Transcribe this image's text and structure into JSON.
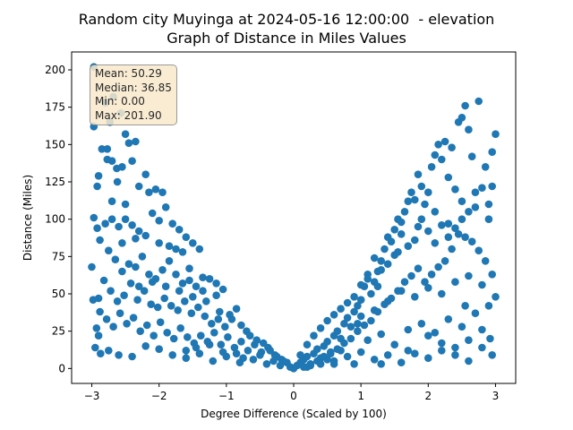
{
  "title_line1": "Random city Muyinga at 2024-05-16 12:00:00  - elevation",
  "title_line2": "Graph of Distance in Miles Values",
  "stats": {
    "mean": "Mean: 50.29",
    "median": "Median: 36.85",
    "min": "Min: 0.00",
    "max": "Max: 201.90"
  },
  "chart_data": {
    "type": "scatter",
    "xlabel": "Degree Difference (Scaled by 100)",
    "ylabel": "Distance (Miles)",
    "xlim": [
      -3.3,
      3.3
    ],
    "ylim": [
      -10,
      212
    ],
    "xticks": [
      -3,
      -2,
      -1,
      0,
      1,
      2,
      3
    ],
    "yticks": [
      0,
      25,
      50,
      75,
      100,
      125,
      150,
      175,
      200
    ],
    "color": "#1f77b4",
    "grid": false,
    "points": [
      [
        -2.97,
        202
      ],
      [
        -2.97,
        162
      ],
      [
        -2.8,
        178
      ],
      [
        -2.73,
        165
      ],
      [
        -2.68,
        182
      ],
      [
        -2.57,
        171
      ],
      [
        -2.85,
        147
      ],
      [
        -2.77,
        147
      ],
      [
        -2.77,
        140
      ],
      [
        -2.7,
        139
      ],
      [
        -2.63,
        134
      ],
      [
        -2.5,
        157
      ],
      [
        -2.45,
        151
      ],
      [
        -2.4,
        139
      ],
      [
        -2.35,
        152
      ],
      [
        -2.9,
        129
      ],
      [
        -2.92,
        122
      ],
      [
        -2.62,
        125
      ],
      [
        -2.55,
        135
      ],
      [
        -2.3,
        122
      ],
      [
        -2.2,
        130
      ],
      [
        -2.15,
        118
      ],
      [
        -2.05,
        120
      ],
      [
        -1.95,
        118
      ],
      [
        -1.9,
        108
      ],
      [
        -2.97,
        101
      ],
      [
        -2.92,
        94
      ],
      [
        -2.8,
        97
      ],
      [
        -2.7,
        100
      ],
      [
        -2.6,
        95
      ],
      [
        -2.5,
        100
      ],
      [
        -2.4,
        96
      ],
      [
        -2.3,
        92
      ],
      [
        -2.2,
        89
      ],
      [
        -2.1,
        104
      ],
      [
        -2.0,
        99
      ],
      [
        -1.8,
        97
      ],
      [
        -1.7,
        93
      ],
      [
        -1.6,
        88
      ],
      [
        -1.5,
        84
      ],
      [
        -1.4,
        80
      ],
      [
        -2.88,
        86
      ],
      [
        -2.75,
        79
      ],
      [
        -2.65,
        73
      ],
      [
        -2.55,
        65
      ],
      [
        -2.45,
        70
      ],
      [
        -2.35,
        68
      ],
      [
        -2.25,
        75
      ],
      [
        -2.15,
        63
      ],
      [
        -2.05,
        60
      ],
      [
        -1.95,
        66
      ],
      [
        -1.85,
        72
      ],
      [
        -1.75,
        63
      ],
      [
        -1.65,
        57
      ],
      [
        -1.55,
        59
      ],
      [
        -1.45,
        55
      ],
      [
        -1.35,
        52
      ],
      [
        -1.25,
        60
      ],
      [
        -1.15,
        57
      ],
      [
        -1.05,
        53
      ],
      [
        -3.0,
        68
      ],
      [
        -2.9,
        47
      ],
      [
        -2.82,
        59
      ],
      [
        -2.72,
        52
      ],
      [
        -2.62,
        45
      ],
      [
        -2.52,
        49
      ],
      [
        -2.42,
        57
      ],
      [
        -2.32,
        46
      ],
      [
        -2.22,
        52
      ],
      [
        -2.12,
        43
      ],
      [
        -2.02,
        41
      ],
      [
        -1.92,
        47
      ],
      [
        -1.82,
        42
      ],
      [
        -1.72,
        39
      ],
      [
        -1.62,
        45
      ],
      [
        -1.52,
        37
      ],
      [
        -1.42,
        41
      ],
      [
        -1.32,
        35
      ],
      [
        -1.22,
        30
      ],
      [
        -1.12,
        33
      ],
      [
        -1.02,
        28
      ],
      [
        -0.92,
        33
      ],
      [
        -0.85,
        40
      ],
      [
        -0.78,
        29
      ],
      [
        -2.98,
        46
      ],
      [
        -2.88,
        38
      ],
      [
        -2.78,
        33
      ],
      [
        -2.68,
        28
      ],
      [
        -2.58,
        37
      ],
      [
        -2.48,
        30
      ],
      [
        -2.38,
        34
      ],
      [
        -2.28,
        25
      ],
      [
        -2.18,
        29
      ],
      [
        -2.08,
        22
      ],
      [
        -1.98,
        31
      ],
      [
        -1.88,
        24
      ],
      [
        -1.78,
        20
      ],
      [
        -1.68,
        27
      ],
      [
        -1.58,
        21
      ],
      [
        -1.48,
        17
      ],
      [
        -1.38,
        22
      ],
      [
        -1.28,
        18
      ],
      [
        -1.18,
        24
      ],
      [
        -1.08,
        16
      ],
      [
        -0.98,
        21
      ],
      [
        -0.88,
        14
      ],
      [
        -0.78,
        18
      ],
      [
        -0.68,
        12
      ],
      [
        -0.58,
        16
      ],
      [
        -0.48,
        11
      ],
      [
        -0.38,
        14
      ],
      [
        -0.28,
        9
      ],
      [
        -0.18,
        6
      ],
      [
        -0.1,
        4
      ],
      [
        -2.93,
        27
      ],
      [
        -2.9,
        22
      ],
      [
        -2.95,
        14
      ],
      [
        -2.87,
        10
      ],
      [
        -2.75,
        12
      ],
      [
        -2.6,
        9
      ],
      [
        -2.4,
        8
      ],
      [
        -2.2,
        15
      ],
      [
        -2.0,
        13
      ],
      [
        -1.8,
        9
      ],
      [
        -1.6,
        7
      ],
      [
        -1.4,
        10
      ],
      [
        -1.2,
        5
      ],
      [
        -1.0,
        8
      ],
      [
        -0.8,
        4
      ],
      [
        -0.6,
        6
      ],
      [
        -0.4,
        3
      ],
      [
        -0.2,
        2
      ],
      [
        -0.05,
        1
      ],
      [
        0.0,
        0
      ],
      [
        -1.5,
        48
      ],
      [
        -1.7,
        52
      ],
      [
        -1.9,
        55
      ],
      [
        -2.1,
        58
      ],
      [
        -1.3,
        45
      ],
      [
        -1.1,
        38
      ],
      [
        -0.95,
        36
      ],
      [
        -0.7,
        25
      ],
      [
        -0.65,
        22
      ],
      [
        -0.55,
        19
      ],
      [
        -0.45,
        17
      ],
      [
        -0.35,
        12
      ],
      [
        -0.25,
        8
      ],
      [
        -0.15,
        5
      ],
      [
        -1.6,
        12
      ],
      [
        -1.45,
        14
      ],
      [
        -1.25,
        16
      ],
      [
        -1.05,
        11
      ],
      [
        -0.85,
        10
      ],
      [
        -0.75,
        7
      ],
      [
        -0.5,
        9
      ],
      [
        -0.3,
        5
      ],
      [
        -2.3,
        55
      ],
      [
        -2.0,
        84
      ],
      [
        -1.85,
        82
      ],
      [
        -1.75,
        80
      ],
      [
        -1.65,
        78
      ],
      [
        -2.5,
        110
      ],
      [
        -2.7,
        112
      ],
      [
        -2.55,
        84
      ],
      [
        -2.35,
        87
      ],
      [
        -1.55,
        67
      ],
      [
        -1.35,
        61
      ],
      [
        -1.15,
        49
      ],
      [
        0.05,
        2
      ],
      [
        0.1,
        4
      ],
      [
        0.15,
        6
      ],
      [
        0.2,
        8
      ],
      [
        0.25,
        3
      ],
      [
        0.3,
        10
      ],
      [
        0.35,
        13
      ],
      [
        0.4,
        7
      ],
      [
        0.45,
        15
      ],
      [
        0.5,
        18
      ],
      [
        0.55,
        11
      ],
      [
        0.6,
        22
      ],
      [
        0.65,
        25
      ],
      [
        0.7,
        20
      ],
      [
        0.75,
        30
      ],
      [
        0.8,
        34
      ],
      [
        0.85,
        28
      ],
      [
        0.9,
        38
      ],
      [
        0.95,
        42
      ],
      [
        1.0,
        46
      ],
      [
        1.05,
        55
      ],
      [
        1.1,
        63
      ],
      [
        1.15,
        50
      ],
      [
        1.2,
        58
      ],
      [
        1.25,
        65
      ],
      [
        1.3,
        72
      ],
      [
        1.35,
        80
      ],
      [
        1.4,
        88
      ],
      [
        1.45,
        85
      ],
      [
        1.5,
        93
      ],
      [
        1.55,
        100
      ],
      [
        1.6,
        98
      ],
      [
        1.65,
        105
      ],
      [
        1.7,
        112
      ],
      [
        1.75,
        118
      ],
      [
        1.8,
        113
      ],
      [
        1.85,
        130
      ],
      [
        1.9,
        122
      ],
      [
        1.95,
        110
      ],
      [
        2.0,
        118
      ],
      [
        2.05,
        135
      ],
      [
        2.1,
        143
      ],
      [
        2.15,
        150
      ],
      [
        2.2,
        140
      ],
      [
        2.25,
        152
      ],
      [
        2.3,
        128
      ],
      [
        2.35,
        148
      ],
      [
        2.4,
        120
      ],
      [
        2.45,
        165
      ],
      [
        2.5,
        168
      ],
      [
        2.55,
        176
      ],
      [
        2.6,
        160
      ],
      [
        2.65,
        142
      ],
      [
        2.75,
        179
      ],
      [
        2.85,
        135
      ],
      [
        2.95,
        145
      ],
      [
        3.0,
        157
      ],
      [
        2.9,
        110
      ],
      [
        2.8,
        121
      ],
      [
        2.7,
        118
      ],
      [
        2.6,
        105
      ],
      [
        2.5,
        100
      ],
      [
        2.4,
        94
      ],
      [
        2.3,
        88
      ],
      [
        2.2,
        96
      ],
      [
        2.1,
        84
      ],
      [
        2.0,
        92
      ],
      [
        1.9,
        100
      ],
      [
        1.8,
        86
      ],
      [
        1.7,
        82
      ],
      [
        1.6,
        90
      ],
      [
        1.5,
        76
      ],
      [
        1.4,
        70
      ],
      [
        1.3,
        66
      ],
      [
        1.2,
        74
      ],
      [
        1.1,
        60
      ],
      [
        1.0,
        56
      ],
      [
        0.9,
        48
      ],
      [
        0.8,
        44
      ],
      [
        0.7,
        40
      ],
      [
        0.6,
        36
      ],
      [
        0.5,
        32
      ],
      [
        0.4,
        27
      ],
      [
        0.3,
        22
      ],
      [
        0.2,
        16
      ],
      [
        0.1,
        9
      ],
      [
        0.2,
        1
      ],
      [
        0.4,
        3
      ],
      [
        0.6,
        5
      ],
      [
        0.8,
        8
      ],
      [
        1.0,
        11
      ],
      [
        1.2,
        6
      ],
      [
        1.4,
        9
      ],
      [
        1.6,
        4
      ],
      [
        1.8,
        10
      ],
      [
        2.0,
        7
      ],
      [
        2.2,
        12
      ],
      [
        2.4,
        9
      ],
      [
        2.6,
        5
      ],
      [
        2.8,
        14
      ],
      [
        2.92,
        20
      ],
      [
        2.95,
        9
      ],
      [
        1.1,
        19
      ],
      [
        1.3,
        23
      ],
      [
        1.5,
        16
      ],
      [
        1.7,
        26
      ],
      [
        1.9,
        30
      ],
      [
        2.1,
        24
      ],
      [
        2.3,
        33
      ],
      [
        2.5,
        28
      ],
      [
        2.7,
        37
      ],
      [
        2.9,
        42
      ],
      [
        1.0,
        35
      ],
      [
        1.2,
        39
      ],
      [
        1.4,
        45
      ],
      [
        1.6,
        52
      ],
      [
        1.8,
        48
      ],
      [
        2.0,
        54
      ],
      [
        2.2,
        50
      ],
      [
        2.4,
        58
      ],
      [
        2.6,
        62
      ],
      [
        2.8,
        56
      ],
      [
        3.0,
        48
      ],
      [
        2.95,
        63
      ],
      [
        2.85,
        72
      ],
      [
        2.75,
        79
      ],
      [
        2.65,
        85
      ],
      [
        2.55,
        88
      ],
      [
        2.45,
        90
      ],
      [
        2.35,
        80
      ],
      [
        2.25,
        72
      ],
      [
        2.15,
        68
      ],
      [
        2.05,
        63
      ],
      [
        1.95,
        58
      ],
      [
        1.85,
        67
      ],
      [
        1.75,
        62
      ],
      [
        1.65,
        58
      ],
      [
        1.55,
        52
      ],
      [
        1.45,
        47
      ],
      [
        1.35,
        43
      ],
      [
        1.25,
        38
      ],
      [
        1.15,
        32
      ],
      [
        1.05,
        29
      ],
      [
        0.95,
        25
      ],
      [
        0.85,
        20
      ],
      [
        0.75,
        17
      ],
      [
        0.65,
        13
      ],
      [
        0.55,
        10
      ],
      [
        0.45,
        8
      ],
      [
        0.35,
        5
      ],
      [
        0.25,
        2
      ],
      [
        0.15,
        1
      ],
      [
        2.0,
        22
      ],
      [
        2.2,
        17
      ],
      [
        2.4,
        14
      ],
      [
        2.6,
        19
      ],
      [
        2.8,
        26
      ],
      [
        2.9,
        100
      ],
      [
        2.95,
        122
      ],
      [
        2.7,
        108
      ],
      [
        2.5,
        112
      ],
      [
        2.3,
        97
      ],
      [
        2.1,
        105
      ],
      [
        1.85,
        95
      ],
      [
        1.55,
        78
      ],
      [
        1.25,
        55
      ],
      [
        0.95,
        30
      ],
      [
        0.7,
        12
      ],
      [
        0.6,
        3
      ],
      [
        0.5,
        6
      ],
      [
        0.9,
        3
      ],
      [
        1.3,
        3
      ],
      [
        1.7,
        12
      ],
      [
        2.55,
        42
      ]
    ]
  }
}
